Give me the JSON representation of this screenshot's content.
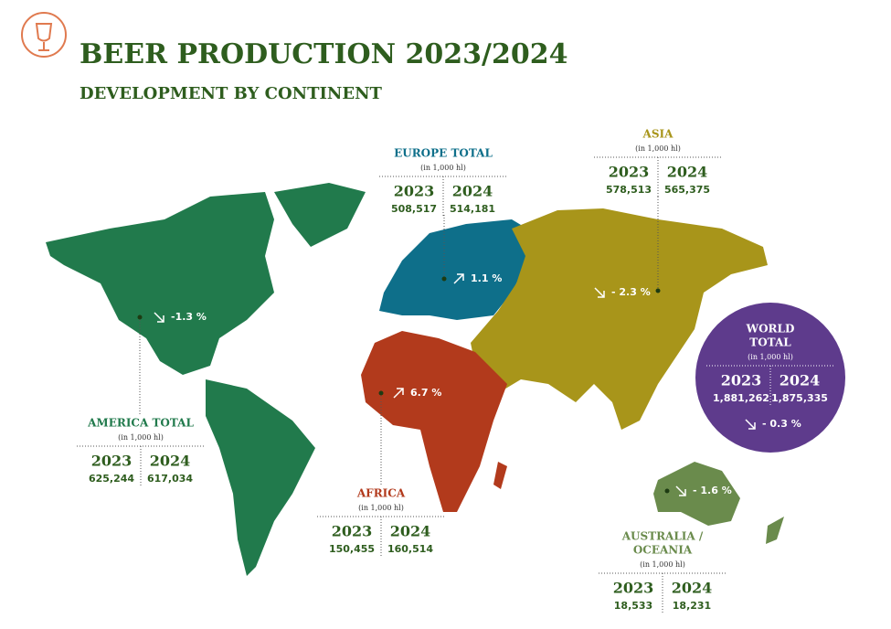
{
  "header": {
    "title": "BEER PRODUCTION 2023/2024",
    "subtitle": "DEVELOPMENT BY CONTINENT"
  },
  "regions": [
    {
      "name": [
        "AMERICA TOTAL"
      ],
      "unit": "(in 1,000 hl)",
      "years": [
        "2023",
        "2024"
      ],
      "values": [
        "625,244",
        "617,034"
      ],
      "change": "-1.3 %"
    },
    {
      "name": [
        "EUROPE TOTAL"
      ],
      "unit": "(in 1,000 hl)",
      "years": [
        "2023",
        "2024"
      ],
      "values": [
        "508,517",
        "514,181"
      ],
      "change": "1.1 %"
    },
    {
      "name": [
        "ASIA"
      ],
      "unit": "(in 1,000 hl)",
      "years": [
        "2023",
        "2024"
      ],
      "values": [
        "578,513",
        "565,375"
      ],
      "change": "- 2.3 %"
    },
    {
      "name": [
        "AFRICA"
      ],
      "unit": "(in 1,000 hl)",
      "years": [
        "2023",
        "2024"
      ],
      "values": [
        "150,455",
        "160,514"
      ],
      "change": "6.7 %"
    },
    {
      "name": [
        "AUSTRALIA /",
        "OCEANIA"
      ],
      "unit": "(in 1,000 hl)",
      "years": [
        "2023",
        "2024"
      ],
      "values": [
        "18,533",
        "18,231"
      ],
      "change": "- 1.6 %"
    },
    {
      "name": [
        "WORLD",
        "TOTAL"
      ],
      "unit": "(in 1,000 hl)",
      "years": [
        "2023",
        "2024"
      ],
      "values": [
        "1,881,262",
        "1,875,335"
      ],
      "change": "- 0.3 %"
    }
  ]
}
